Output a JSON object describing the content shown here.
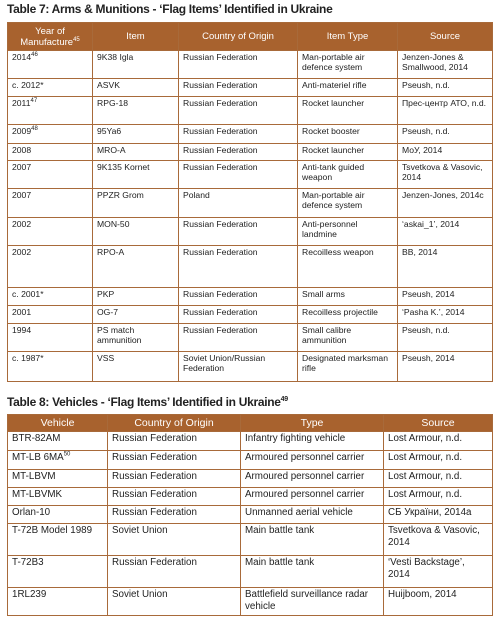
{
  "table7": {
    "title": "Table 7: Arms & Munitions - ‘Flag Items’ Identified in Ukraine",
    "columns": [
      "Year of Manufacture",
      "Item",
      "Country of Origin",
      "Item Type",
      "Source"
    ],
    "columns_note": "45",
    "rows": [
      {
        "cells": [
          "2014",
          "9K38 Igla",
          "Russian Federation",
          "Man-portable air defence system",
          "Jenzen-Jones & Smallwood, 2014"
        ],
        "note": "46"
      },
      {
        "cells": [
          "c. 2012*",
          "ASVK",
          "Russian Federation",
          "Anti-materiel rifle",
          "Pseush, n.d."
        ]
      },
      {
        "cells": [
          "2011",
          "RPG-18",
          "Russian Federation",
          "Rocket launcher",
          "Прес-центр АТО, n.d."
        ],
        "note": "47"
      },
      {
        "cells": [
          "2009",
          "95Ya6",
          "Russian Federation",
          "Rocket booster",
          "Pseush, n.d."
        ],
        "note": "48"
      },
      {
        "cells": [
          "2008",
          "MRO-A",
          "Russian Federation",
          "Rocket launcher",
          "МоУ, 2014"
        ]
      },
      {
        "cells": [
          "2007",
          "9K135 Kornet",
          "Russian Federation",
          "Anti-tank guided weapon",
          "Tsvetkova & Vasovic, 2014"
        ]
      },
      {
        "cells": [
          "2007",
          "PPZR Grom",
          "Poland",
          "Man-portable air defence system",
          "Jenzen-Jones, 2014c"
        ]
      },
      {
        "cells": [
          "2002",
          "MON-50",
          "Russian Federation",
          "Anti-personnel landmine",
          "‘askai_1’, 2014"
        ]
      },
      {
        "cells": [
          "2002",
          "RPO-A",
          "Russian Federation",
          "Recoilless weapon",
          "ВВ, 2014"
        ]
      },
      {
        "cells": [
          "c. 2001*",
          "PKP",
          "Russian Federation",
          "Small arms",
          "Pseush, 2014"
        ]
      },
      {
        "cells": [
          "2001",
          "OG-7",
          "Russian Federation",
          "Recoilless projectile",
          "‘Pasha K.’, 2014"
        ]
      },
      {
        "cells": [
          "1994",
          "PS match ammunition",
          "Russian Federation",
          "Small calibre ammunition",
          "Pseush, n.d."
        ]
      },
      {
        "cells": [
          "c. 1987*",
          "VSS",
          "Soviet Union/Russian Federation",
          "Designated marksman rifle",
          "Pseush, 2014"
        ]
      }
    ]
  },
  "table8": {
    "title": "Table 8: Vehicles - ‘Flag Items’ Identified in Ukraine",
    "title_note": "49",
    "columns": [
      "Vehicle",
      "Country of Origin",
      "Type",
      "Source"
    ],
    "rows": [
      {
        "cells": [
          "BTR-82AM",
          "Russian Federation",
          "Infantry fighting vehicle",
          "Lost Armour, n.d."
        ]
      },
      {
        "cells": [
          "MT-LB 6MA",
          "Russian Federation",
          "Armoured personnel carrier",
          "Lost Armour, n.d."
        ],
        "note": "50"
      },
      {
        "cells": [
          "MT-LBVM",
          "Russian Federation",
          "Armoured personnel carrier",
          "Lost Armour, n.d."
        ]
      },
      {
        "cells": [
          "MT-LBVMK",
          "Russian Federation",
          "Armoured personnel carrier",
          "Lost Armour, n.d."
        ]
      },
      {
        "cells": [
          "Orlan-10",
          "Russian Federation",
          "Unmanned aerial vehicle",
          "СБ України, 2014a"
        ]
      },
      {
        "cells": [
          "T-72B Model 1989",
          "Soviet Union",
          "Main battle tank",
          "Tsvetkova & Vasovic, 2014"
        ]
      },
      {
        "cells": [
          "T-72B3",
          "Russian Federation",
          "Main battle tank",
          "‘Vesti Backstage’, 2014"
        ]
      },
      {
        "cells": [
          "1RL239",
          "Soviet Union",
          "Battlefield surveillance radar vehicle",
          "Huijboom, 2014"
        ]
      }
    ]
  }
}
